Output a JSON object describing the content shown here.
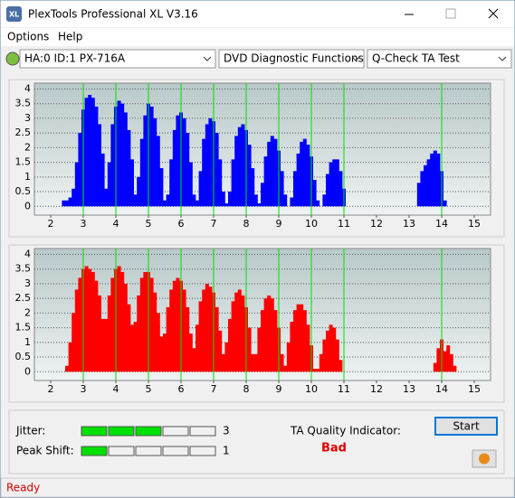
{
  "window": {
    "title": "PlexTools Professional XL V3.16",
    "icon": "XL"
  },
  "menu": [
    "Options",
    "Help"
  ],
  "toolbar": {
    "drive": "HA:0 ID:1  PX-716A",
    "function": "DVD Diagnostic Functions",
    "test": "Q-Check TA Test"
  },
  "chart_data": [
    {
      "type": "bar",
      "color": "#0000ff",
      "xlim": [
        1.5,
        15.5
      ],
      "ylim": [
        -0.3,
        4.2
      ],
      "xticks": [
        2,
        3,
        4,
        5,
        6,
        7,
        8,
        9,
        10,
        11,
        12,
        13,
        14,
        15
      ],
      "yticks": [
        0,
        0.5,
        1,
        1.5,
        2,
        2.5,
        3,
        3.5,
        4
      ],
      "grid": true,
      "reference_x": [
        3,
        4,
        5,
        6,
        7,
        8,
        9,
        10,
        11,
        14
      ],
      "reference_color": "#00e000",
      "series": [
        {
          "x": [
            2.4,
            2.5,
            2.6,
            2.7,
            2.8,
            2.9,
            3.0,
            3.1,
            3.2,
            3.3,
            3.4,
            3.5,
            3.6,
            3.7,
            3.8,
            3.9,
            4.0,
            4.1,
            4.2,
            4.3,
            4.4,
            4.5,
            4.6,
            4.7,
            4.8,
            4.9,
            5.0,
            5.1,
            5.2,
            5.3,
            5.4,
            5.5,
            5.6,
            5.7,
            5.8,
            5.9,
            6.0,
            6.1,
            6.2,
            6.3,
            6.4,
            6.5,
            6.6,
            6.7,
            6.8,
            6.9,
            7.0,
            7.1,
            7.2,
            7.3,
            7.4,
            7.5,
            7.6,
            7.7,
            7.8,
            7.9,
            8.0,
            8.1,
            8.2,
            8.3,
            8.4,
            8.5,
            8.6,
            8.7,
            8.8,
            8.9,
            9.0,
            9.1,
            9.2,
            9.3,
            9.4,
            9.5,
            9.6,
            9.7,
            9.8,
            9.9,
            10.0,
            10.1,
            10.2,
            10.3,
            10.4,
            10.5,
            10.6,
            10.7,
            10.8,
            10.9,
            11.0,
            11.1,
            13.3,
            13.4,
            13.5,
            13.6,
            13.7,
            13.8,
            13.9,
            14.0,
            14.1
          ],
          "values": [
            0.2,
            0.2,
            0.3,
            0.6,
            1.5,
            2.5,
            3.3,
            3.7,
            3.8,
            3.7,
            3.4,
            2.8,
            1.8,
            0.6,
            1.5,
            2.8,
            3.4,
            3.6,
            3.5,
            3.2,
            2.6,
            1.6,
            0.4,
            1.0,
            2.3,
            3.1,
            3.5,
            3.4,
            3.0,
            2.4,
            1.3,
            0.2,
            0.4,
            1.6,
            2.6,
            3.1,
            3.2,
            3.0,
            2.5,
            1.5,
            0.4,
            0.2,
            1.2,
            2.3,
            2.8,
            3.0,
            2.9,
            2.5,
            1.6,
            0.5,
            0.1,
            0.5,
            1.6,
            2.4,
            2.7,
            2.8,
            2.6,
            2.1,
            1.3,
            0.4,
            0.1,
            0.8,
            1.7,
            2.2,
            2.4,
            2.3,
            1.9,
            1.2,
            0.4,
            0,
            0.3,
            1.2,
            1.8,
            2.2,
            2.3,
            2.1,
            1.7,
            0.9,
            0.2,
            0,
            0.4,
            1.1,
            1.5,
            1.6,
            1.6,
            1.2,
            0.6,
            0,
            0.8,
            1.2,
            1.4,
            1.6,
            1.8,
            1.9,
            1.8,
            1.2,
            0.2
          ]
        }
      ]
    },
    {
      "type": "bar",
      "color": "#ff0000",
      "xlim": [
        1.5,
        15.5
      ],
      "ylim": [
        -0.3,
        4.2
      ],
      "xticks": [
        2,
        3,
        4,
        5,
        6,
        7,
        8,
        9,
        10,
        11,
        12,
        13,
        14,
        15
      ],
      "yticks": [
        0,
        0.5,
        1,
        1.5,
        2,
        2.5,
        3,
        3.5,
        4
      ],
      "grid": true,
      "reference_x": [
        3,
        4,
        5,
        6,
        7,
        8,
        9,
        10,
        11,
        14
      ],
      "reference_color": "#00e000",
      "series": [
        {
          "x": [
            2.5,
            2.6,
            2.7,
            2.8,
            2.9,
            3.0,
            3.1,
            3.2,
            3.3,
            3.4,
            3.5,
            3.6,
            3.7,
            3.8,
            3.9,
            4.0,
            4.1,
            4.2,
            4.3,
            4.4,
            4.5,
            4.6,
            4.7,
            4.8,
            4.9,
            5.0,
            5.1,
            5.2,
            5.3,
            5.4,
            5.5,
            5.6,
            5.7,
            5.8,
            5.9,
            6.0,
            6.1,
            6.2,
            6.3,
            6.4,
            6.5,
            6.6,
            6.7,
            6.8,
            6.9,
            7.0,
            7.1,
            7.2,
            7.3,
            7.4,
            7.5,
            7.6,
            7.7,
            7.8,
            7.9,
            8.0,
            8.1,
            8.2,
            8.3,
            8.4,
            8.5,
            8.6,
            8.7,
            8.8,
            8.9,
            9.0,
            9.1,
            9.2,
            9.3,
            9.4,
            9.5,
            9.6,
            9.7,
            9.8,
            9.9,
            10.0,
            10.1,
            10.2,
            10.3,
            10.4,
            10.5,
            10.6,
            10.7,
            10.8,
            10.9,
            11.0,
            13.8,
            13.9,
            14.0,
            14.1,
            14.2,
            14.3,
            14.4
          ],
          "values": [
            0.2,
            1.0,
            2.0,
            2.8,
            3.2,
            3.5,
            3.6,
            3.5,
            3.4,
            3.1,
            2.6,
            1.8,
            1.8,
            2.6,
            3.2,
            3.5,
            3.6,
            3.4,
            3.0,
            2.3,
            1.6,
            1.7,
            2.6,
            3.2,
            3.4,
            3.4,
            3.2,
            2.7,
            2.0,
            1.2,
            1.3,
            2.2,
            2.8,
            3.1,
            3.2,
            3.1,
            2.8,
            2.2,
            1.3,
            0.8,
            1.6,
            2.4,
            2.8,
            3.0,
            2.9,
            2.7,
            2.2,
            1.4,
            0.6,
            1.0,
            1.8,
            2.4,
            2.7,
            2.8,
            2.6,
            2.2,
            1.5,
            0.6,
            0.6,
            1.5,
            2.1,
            2.5,
            2.6,
            2.5,
            2.1,
            1.5,
            0.6,
            0.2,
            1.0,
            1.7,
            2.1,
            2.3,
            2.3,
            2.1,
            1.6,
            0.9,
            0.1,
            0.1,
            0.6,
            1.1,
            1.4,
            1.6,
            1.5,
            1.1,
            0.4,
            0,
            0.3,
            0.8,
            1.1,
            0.7,
            0.9,
            0.6,
            0.2
          ]
        }
      ]
    }
  ],
  "results": {
    "jitter_label": "Jitter:",
    "jitter": 3,
    "peak_shift_label": "Peak Shift:",
    "peak_shift": 1,
    "ta_label": "TA Quality Indicator:",
    "ta_value": "Bad",
    "start": "Start"
  },
  "status": "Ready"
}
